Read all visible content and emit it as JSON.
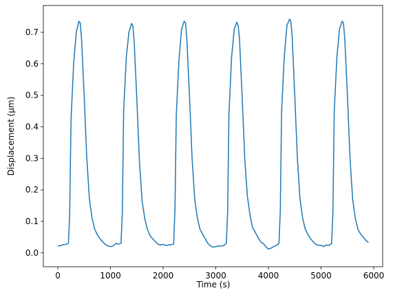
{
  "chart_data": {
    "type": "line",
    "x_label": "Time (s)",
    "y_label": "Displacement (μm)",
    "x": [
      0,
      50,
      100,
      150,
      200,
      225,
      250,
      300,
      350,
      400,
      425,
      450,
      500,
      550,
      600,
      650,
      700,
      750,
      800,
      850,
      900,
      950,
      1000,
      1050,
      1100,
      1150,
      1200,
      1225,
      1250,
      1300,
      1350,
      1400,
      1425,
      1450,
      1500,
      1550,
      1600,
      1650,
      1700,
      1750,
      1800,
      1850,
      1900,
      1950,
      2000,
      2050,
      2100,
      2150,
      2200,
      2225,
      2250,
      2300,
      2350,
      2400,
      2425,
      2450,
      2500,
      2550,
      2600,
      2650,
      2700,
      2750,
      2800,
      2850,
      2900,
      2950,
      3000,
      3050,
      3100,
      3150,
      3200,
      3225,
      3250,
      3300,
      3350,
      3400,
      3425,
      3450,
      3500,
      3550,
      3600,
      3650,
      3700,
      3750,
      3800,
      3850,
      3900,
      3950,
      4000,
      4050,
      4100,
      4150,
      4200,
      4225,
      4250,
      4300,
      4350,
      4400,
      4425,
      4450,
      4500,
      4550,
      4600,
      4650,
      4700,
      4750,
      4800,
      4850,
      4900,
      4950,
      5000,
      5050,
      5100,
      5150,
      5200,
      5225,
      5250,
      5300,
      5350,
      5400,
      5425,
      5450,
      5500,
      5550,
      5600,
      5650,
      5700,
      5750,
      5800,
      5850,
      5900
    ],
    "series": [
      {
        "name": "displacement",
        "color": "#1f77b4",
        "values": [
          0.022,
          0.023,
          0.026,
          0.027,
          0.03,
          0.12,
          0.42,
          0.6,
          0.7,
          0.735,
          0.73,
          0.68,
          0.5,
          0.3,
          0.17,
          0.11,
          0.075,
          0.058,
          0.045,
          0.035,
          0.027,
          0.022,
          0.02,
          0.022,
          0.03,
          0.028,
          0.03,
          0.13,
          0.45,
          0.62,
          0.7,
          0.728,
          0.72,
          0.67,
          0.49,
          0.29,
          0.165,
          0.11,
          0.075,
          0.055,
          0.045,
          0.036,
          0.028,
          0.025,
          0.027,
          0.024,
          0.025,
          0.026,
          0.028,
          0.14,
          0.44,
          0.61,
          0.71,
          0.735,
          0.73,
          0.68,
          0.5,
          0.3,
          0.17,
          0.11,
          0.075,
          0.06,
          0.045,
          0.03,
          0.022,
          0.018,
          0.02,
          0.022,
          0.022,
          0.023,
          0.03,
          0.13,
          0.44,
          0.62,
          0.71,
          0.732,
          0.72,
          0.68,
          0.5,
          0.3,
          0.18,
          0.12,
          0.08,
          0.065,
          0.05,
          0.035,
          0.03,
          0.02,
          0.012,
          0.015,
          0.02,
          0.024,
          0.03,
          0.13,
          0.45,
          0.62,
          0.72,
          0.742,
          0.735,
          0.69,
          0.5,
          0.3,
          0.17,
          0.11,
          0.075,
          0.058,
          0.045,
          0.035,
          0.027,
          0.024,
          0.024,
          0.02,
          0.025,
          0.024,
          0.03,
          0.13,
          0.45,
          0.62,
          0.71,
          0.735,
          0.73,
          0.68,
          0.5,
          0.3,
          0.17,
          0.11,
          0.075,
          0.06,
          0.05,
          0.04,
          0.033
        ]
      }
    ],
    "xlim": [
      -275,
      6170
    ],
    "xticks": [
      0,
      1000,
      2000,
      3000,
      4000,
      5000,
      6000
    ],
    "ylim": [
      -0.044,
      0.785
    ],
    "yticks": [
      {
        "value": 0,
        "label": "0.0"
      },
      0.1,
      0.2,
      0.3,
      0.4,
      0.5,
      0.6,
      0.7
    ],
    "grid": false
  }
}
